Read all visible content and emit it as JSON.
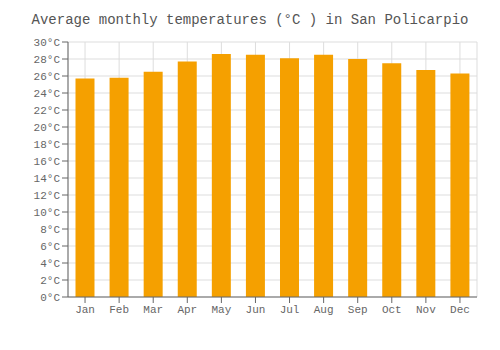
{
  "chart_data": {
    "type": "bar",
    "title": "Average monthly temperatures (°C ) in San Policarpio",
    "categories": [
      "Jan",
      "Feb",
      "Mar",
      "Apr",
      "May",
      "Jun",
      "Jul",
      "Aug",
      "Sep",
      "Oct",
      "Nov",
      "Dec"
    ],
    "values": [
      25.7,
      25.8,
      26.5,
      27.7,
      28.6,
      28.5,
      28.1,
      28.5,
      28.0,
      27.5,
      26.7,
      26.3
    ],
    "color": "#F5A000",
    "ylim": [
      0,
      30
    ],
    "yticks": [
      {
        "value": 0,
        "label": "0°C"
      },
      {
        "value": 2,
        "label": "2°C"
      },
      {
        "value": 4,
        "label": "4°C"
      },
      {
        "value": 6,
        "label": "6°C"
      },
      {
        "value": 8,
        "label": "8°C"
      },
      {
        "value": 10,
        "label": "10°C"
      },
      {
        "value": 12,
        "label": "12°C"
      },
      {
        "value": 14,
        "label": "14°C"
      },
      {
        "value": 16,
        "label": "16°C"
      },
      {
        "value": 18,
        "label": "18°C"
      },
      {
        "value": 20,
        "label": "20°C"
      },
      {
        "value": 22,
        "label": "22°C"
      },
      {
        "value": 24,
        "label": "24°C"
      },
      {
        "value": 26,
        "label": "26°C"
      },
      {
        "value": 28,
        "label": "28°C"
      },
      {
        "value": 30,
        "label": "30°C"
      }
    ],
    "grid": true
  }
}
